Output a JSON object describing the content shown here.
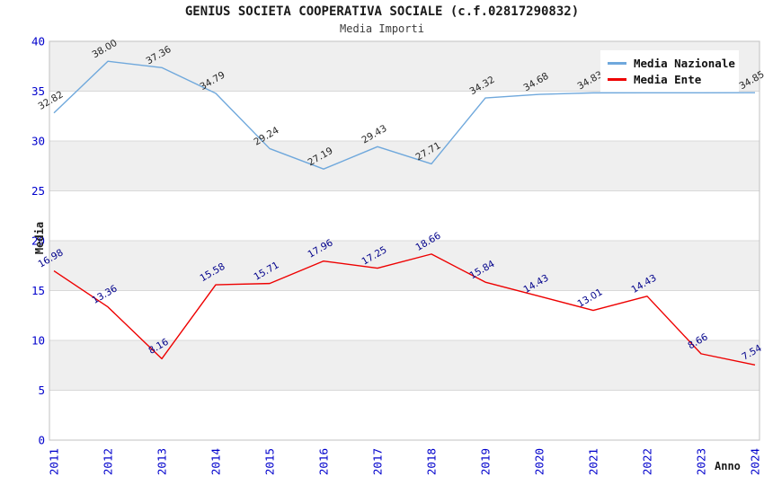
{
  "title": "GENIUS SOCIETA COOPERATIVA SOCIALE (c.f.02817290832)",
  "subtitle": "Media Importi",
  "legend": {
    "position": "upper right",
    "items": [
      {
        "label": "Media Nazionale",
        "color": "#6FA8DC"
      },
      {
        "label": "Media Ente",
        "color": "#EE0000"
      }
    ]
  },
  "chart_data": {
    "type": "line",
    "x": [
      "2011",
      "2012",
      "2013",
      "2014",
      "2015",
      "2016",
      "2017",
      "2018",
      "2019",
      "2020",
      "2021",
      "2022",
      "2023",
      "2024"
    ],
    "xlabel": "Anno",
    "ylabel": "Media",
    "ylim": [
      0,
      40
    ],
    "ytick_step": 5,
    "grid": true,
    "series": [
      {
        "name": "Media Nazionale",
        "color": "#6FA8DC",
        "label_color": "#262626",
        "values": [
          32.82,
          38.0,
          37.36,
          34.79,
          29.24,
          27.19,
          29.43,
          27.71,
          34.32,
          34.68,
          34.83,
          34.84,
          34.84,
          34.85
        ],
        "labels": [
          "32.82",
          "38.00",
          "37.36",
          "34.79",
          "29.24",
          "27.19",
          "29.43",
          "27.71",
          "34.32",
          "34.68",
          "34.83",
          "",
          "",
          "34.85"
        ]
      },
      {
        "name": "Media Ente",
        "color": "#EE0000",
        "label_color": "#00008B",
        "values": [
          16.98,
          13.36,
          8.16,
          15.58,
          15.71,
          17.96,
          17.25,
          18.66,
          15.84,
          14.43,
          13.01,
          14.43,
          8.66,
          7.54
        ],
        "labels": [
          "16.98",
          "13.36",
          "8.16",
          "15.58",
          "15.71",
          "17.96",
          "17.25",
          "18.66",
          "15.84",
          "14.43",
          "13.01",
          "14.43",
          "8.66",
          "7.54"
        ]
      }
    ],
    "style": {
      "tick_color": "#0000CC",
      "band_color": "#EFEFEF",
      "grid_color": "#D8D8D8",
      "border_color": "#C0C0C0"
    }
  }
}
